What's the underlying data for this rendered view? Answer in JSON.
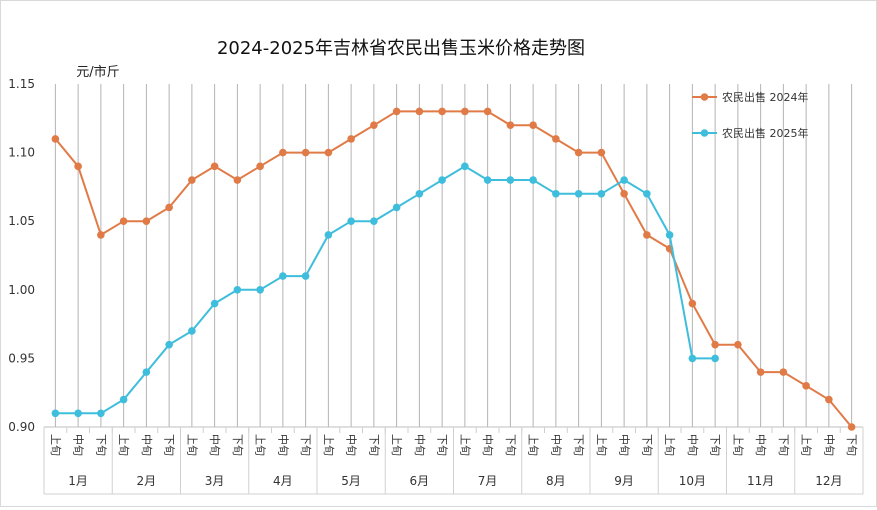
{
  "chart_data": {
    "type": "line",
    "title": "2024-2025年吉林省农民出售玉米价格走势图",
    "ylabel": "元/市斤",
    "xlabel": "",
    "ylim": [
      0.9,
      1.15
    ],
    "yticks": [
      "0.90",
      "0.95",
      "1.00",
      "1.05",
      "1.10",
      "1.15"
    ],
    "grid": "vertical",
    "legend_position": "top-right",
    "sub_labels": [
      "上旬",
      "中旬",
      "下旬"
    ],
    "months": [
      "1月",
      "2月",
      "3月",
      "4月",
      "5月",
      "6月",
      "7月",
      "8月",
      "9月",
      "10月",
      "11月",
      "12月"
    ],
    "series": [
      {
        "name": "农民出售 2024年",
        "color": "#e07b48",
        "values": [
          1.11,
          1.09,
          1.04,
          1.05,
          1.05,
          1.06,
          1.08,
          1.09,
          1.08,
          1.09,
          1.1,
          1.1,
          1.1,
          1.11,
          1.12,
          1.13,
          1.13,
          1.13,
          1.13,
          1.13,
          1.12,
          1.12,
          1.11,
          1.1,
          1.1,
          1.07,
          1.04,
          1.03,
          0.99,
          0.96,
          0.96,
          0.94,
          0.94,
          0.93,
          0.92,
          0.9
        ]
      },
      {
        "name": "农民出售 2025年",
        "color": "#3fbddc",
        "values": [
          0.91,
          0.91,
          0.91,
          0.92,
          0.94,
          0.96,
          0.97,
          0.99,
          1.0,
          1.0,
          1.01,
          1.01,
          1.04,
          1.05,
          1.05,
          1.06,
          1.07,
          1.08,
          1.09,
          1.08,
          1.08,
          1.08,
          1.07,
          1.07,
          1.07,
          1.08,
          1.07,
          1.04,
          0.95,
          0.95
        ]
      }
    ]
  }
}
